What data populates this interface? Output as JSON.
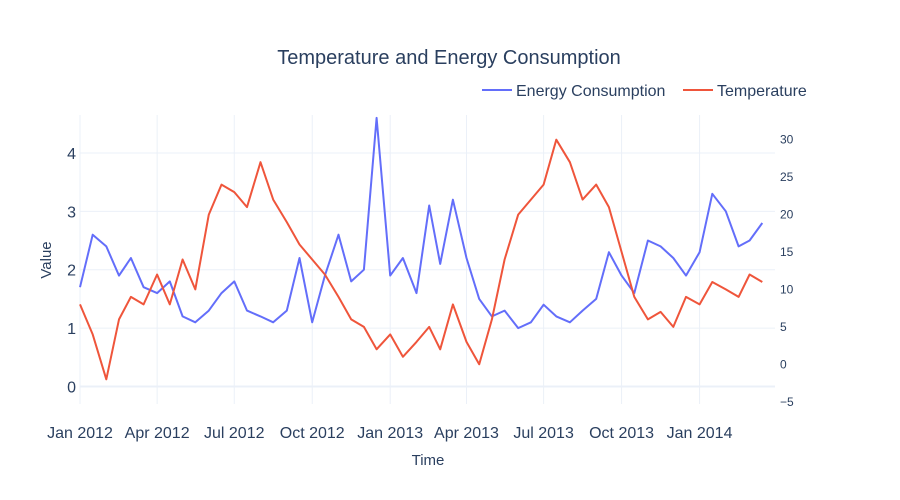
{
  "chart_data": {
    "type": "line",
    "title": "Temperature and Energy Consumption",
    "xlabel": "Time",
    "ylabel": "Value",
    "x_range": [
      "2012-01-01",
      "2014-03-31"
    ],
    "ylim": [
      -0.3,
      4.65
    ],
    "y2lim": [
      -5.3,
      33.3
    ],
    "x_ticks": [
      "Jan 2012",
      "Apr 2012",
      "Jul 2012",
      "Oct 2012",
      "Jan 2013",
      "Apr 2013",
      "Jul 2013",
      "Oct 2013",
      "Jan 2014"
    ],
    "x_tick_dates": [
      "2012-01-01",
      "2012-04-01",
      "2012-07-01",
      "2012-10-01",
      "2013-01-01",
      "2013-04-01",
      "2013-07-01",
      "2013-10-01",
      "2014-01-01"
    ],
    "y_ticks": [
      "0",
      "1",
      "2",
      "3",
      "4"
    ],
    "y2_ticks": [
      "−5",
      "0",
      "5",
      "10",
      "15",
      "20",
      "25",
      "30"
    ],
    "legend_position": "top-right",
    "grid": true,
    "series": [
      {
        "name": "Energy Consumption",
        "color": "#636efa",
        "axis": "y",
        "x": [
          "2012-01-01",
          "2012-01-16",
          "2012-02-01",
          "2012-02-16",
          "2012-03-01",
          "2012-03-16",
          "2012-04-01",
          "2012-04-16",
          "2012-05-01",
          "2012-05-16",
          "2012-06-01",
          "2012-06-16",
          "2012-07-01",
          "2012-07-16",
          "2012-08-01",
          "2012-08-16",
          "2012-09-01",
          "2012-09-16",
          "2012-10-01",
          "2012-10-16",
          "2012-11-01",
          "2012-11-16",
          "2012-12-01",
          "2012-12-16",
          "2013-01-01",
          "2013-01-16",
          "2013-02-01",
          "2013-02-16",
          "2013-03-01",
          "2013-03-16",
          "2013-04-01",
          "2013-04-16",
          "2013-05-01",
          "2013-05-16",
          "2013-06-01",
          "2013-06-16",
          "2013-07-01",
          "2013-07-16",
          "2013-08-01",
          "2013-08-16",
          "2013-09-01",
          "2013-09-16",
          "2013-10-01",
          "2013-10-16",
          "2013-11-01",
          "2013-11-16",
          "2013-12-01",
          "2013-12-16",
          "2014-01-01",
          "2014-01-16",
          "2014-02-01",
          "2014-02-16",
          "2014-03-01",
          "2014-03-16"
        ],
        "y": [
          1.7,
          2.6,
          2.4,
          1.9,
          2.2,
          1.7,
          1.6,
          1.8,
          1.2,
          1.1,
          1.3,
          1.6,
          1.8,
          1.3,
          1.2,
          1.1,
          1.3,
          2.2,
          1.1,
          1.9,
          2.6,
          1.8,
          2.0,
          4.6,
          1.9,
          2.2,
          1.6,
          3.1,
          2.1,
          3.2,
          2.2,
          1.5,
          1.2,
          1.3,
          1.0,
          1.1,
          1.4,
          1.2,
          1.1,
          1.3,
          1.5,
          2.3,
          1.9,
          1.6,
          2.5,
          2.4,
          2.2,
          1.9,
          2.3,
          3.3,
          3.0,
          2.4,
          2.5,
          2.8
        ]
      },
      {
        "name": "Temperature",
        "color": "#ef553b",
        "axis": "y2",
        "x": [
          "2012-01-01",
          "2012-01-16",
          "2012-02-01",
          "2012-02-16",
          "2012-03-01",
          "2012-03-16",
          "2012-04-01",
          "2012-04-16",
          "2012-05-01",
          "2012-05-16",
          "2012-06-01",
          "2012-06-16",
          "2012-07-01",
          "2012-07-16",
          "2012-08-01",
          "2012-08-16",
          "2012-09-01",
          "2012-09-16",
          "2012-10-01",
          "2012-10-16",
          "2012-11-01",
          "2012-11-16",
          "2012-12-01",
          "2012-12-16",
          "2013-01-01",
          "2013-01-16",
          "2013-02-01",
          "2013-02-16",
          "2013-03-01",
          "2013-03-16",
          "2013-04-01",
          "2013-04-16",
          "2013-05-01",
          "2013-05-16",
          "2013-06-01",
          "2013-06-16",
          "2013-07-01",
          "2013-07-16",
          "2013-08-01",
          "2013-08-16",
          "2013-09-01",
          "2013-09-16",
          "2013-10-01",
          "2013-10-16",
          "2013-11-01",
          "2013-11-16",
          "2013-12-01",
          "2013-12-16",
          "2014-01-01",
          "2014-01-16",
          "2014-02-01",
          "2014-02-16",
          "2014-03-01",
          "2014-03-16"
        ],
        "y": [
          8,
          4,
          -2,
          6,
          9,
          8,
          12,
          8,
          14,
          10,
          20,
          24,
          23,
          21,
          27,
          22,
          19,
          16,
          14,
          12,
          9,
          6,
          5,
          2,
          4,
          1,
          3,
          5,
          2,
          8,
          3,
          0,
          6,
          14,
          20,
          22,
          24,
          30,
          27,
          22,
          24,
          21,
          15,
          9,
          6,
          7,
          5,
          9,
          8,
          11,
          10,
          9,
          12,
          11
        ]
      }
    ]
  }
}
